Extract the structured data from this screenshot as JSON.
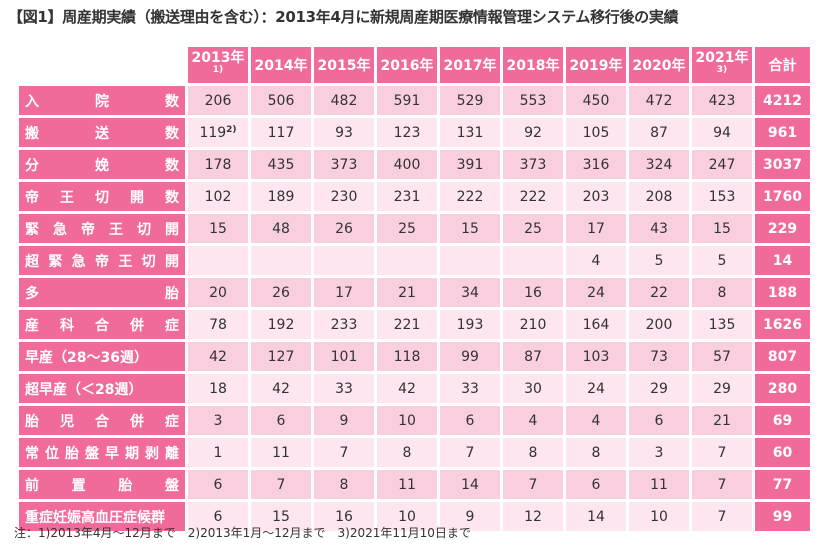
{
  "title": "【図1】周産期実績（搬送理由を含む）：2013年4月に新規周産期医療情報管理システム移行後の実績",
  "header": {
    "years": [
      {
        "label": "2013年",
        "sup": "1)"
      },
      {
        "label": "2014年",
        "sup": ""
      },
      {
        "label": "2015年",
        "sup": ""
      },
      {
        "label": "2016年",
        "sup": ""
      },
      {
        "label": "2017年",
        "sup": ""
      },
      {
        "label": "2018年",
        "sup": ""
      },
      {
        "label": "2019年",
        "sup": ""
      },
      {
        "label": "2020年",
        "sup": ""
      },
      {
        "label": "2021年",
        "sup": "3)"
      }
    ],
    "total_label": "合計"
  },
  "rows": [
    {
      "label": "入院数",
      "spread": true,
      "values": [
        "206",
        "506",
        "482",
        "591",
        "529",
        "553",
        "450",
        "472",
        "423"
      ],
      "sup": "",
      "total": "4212"
    },
    {
      "label": "搬送数",
      "spread": true,
      "values": [
        "119",
        "117",
        "93",
        "123",
        "131",
        "92",
        "105",
        "87",
        "94"
      ],
      "sup": "2)",
      "total": "961"
    },
    {
      "label": "分娩数",
      "spread": true,
      "values": [
        "178",
        "435",
        "373",
        "400",
        "391",
        "373",
        "316",
        "324",
        "247"
      ],
      "sup": "",
      "total": "3037"
    },
    {
      "label": "帝王切開数",
      "spread": true,
      "values": [
        "102",
        "189",
        "230",
        "231",
        "222",
        "222",
        "203",
        "208",
        "153"
      ],
      "sup": "",
      "total": "1760"
    },
    {
      "label": "緊急帝王切開",
      "spread": true,
      "values": [
        "15",
        "48",
        "26",
        "25",
        "15",
        "25",
        "17",
        "43",
        "15"
      ],
      "sup": "",
      "total": "229"
    },
    {
      "label": "超緊急帝王切開",
      "spread": true,
      "values": [
        "",
        "",
        "",
        "",
        "",
        "",
        "4",
        "5",
        "5"
      ],
      "sup": "",
      "total": "14"
    },
    {
      "label": "多胎",
      "spread": true,
      "values": [
        "20",
        "26",
        "17",
        "21",
        "34",
        "16",
        "24",
        "22",
        "8"
      ],
      "sup": "",
      "total": "188"
    },
    {
      "label": "産科合併症",
      "spread": true,
      "values": [
        "78",
        "192",
        "233",
        "221",
        "193",
        "210",
        "164",
        "200",
        "135"
      ],
      "sup": "",
      "total": "1626"
    },
    {
      "label": "早産（28～36週）",
      "spread": false,
      "values": [
        "42",
        "127",
        "101",
        "118",
        "99",
        "87",
        "103",
        "73",
        "57"
      ],
      "sup": "",
      "total": "807"
    },
    {
      "label": "超早産（＜28週）",
      "spread": false,
      "values": [
        "18",
        "42",
        "33",
        "42",
        "33",
        "30",
        "24",
        "29",
        "29"
      ],
      "sup": "",
      "total": "280"
    },
    {
      "label": "胎児合併症",
      "spread": true,
      "values": [
        "3",
        "6",
        "9",
        "10",
        "6",
        "4",
        "4",
        "6",
        "21"
      ],
      "sup": "",
      "total": "69"
    },
    {
      "label": "常位胎盤早期剥離",
      "spread": true,
      "values": [
        "1",
        "11",
        "7",
        "8",
        "7",
        "8",
        "8",
        "3",
        "7"
      ],
      "sup": "",
      "total": "60"
    },
    {
      "label": "前置胎盤",
      "spread": true,
      "values": [
        "6",
        "7",
        "8",
        "11",
        "14",
        "7",
        "6",
        "11",
        "7"
      ],
      "sup": "",
      "total": "77"
    },
    {
      "label": "重症妊娠高血圧症候群",
      "spread": false,
      "values": [
        "6",
        "15",
        "16",
        "10",
        "9",
        "12",
        "14",
        "10",
        "7"
      ],
      "sup": "",
      "total": "99"
    }
  ],
  "note": "注：1)2013年4月～12月まで　2)2013年1月～12月まで　3)2021年11月10日まで",
  "colors": {
    "accent": "#f06b9c",
    "cell_dark": "#f9cfe0",
    "cell_light": "#fde6ef"
  }
}
